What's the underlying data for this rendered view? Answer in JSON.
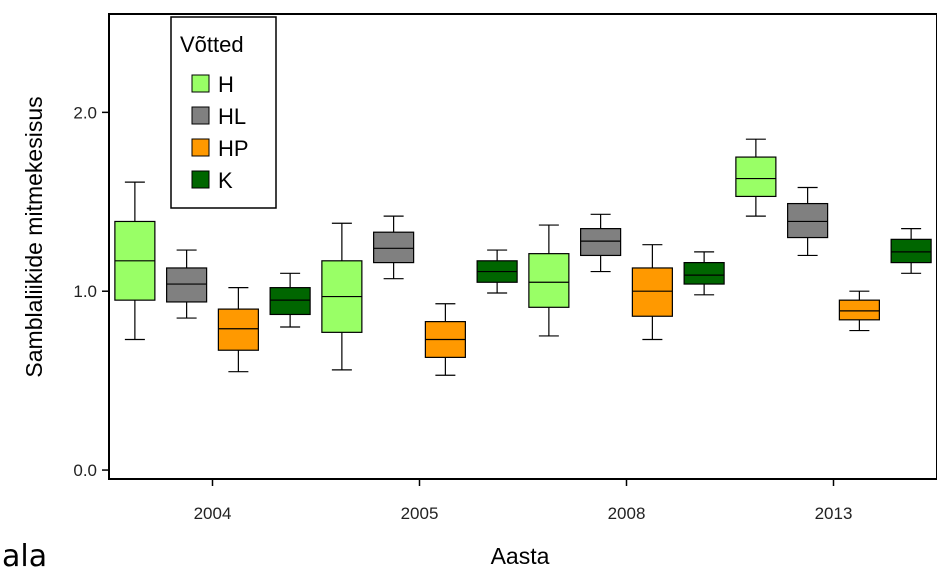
{
  "corner_text": "ala",
  "chart_data": {
    "type": "box",
    "xlabel": "Aasta",
    "ylabel": "Samblaliikide mitmekesisus",
    "ylim": [
      -0.05,
      2.55
    ],
    "yticks": [
      0.0,
      1.0,
      2.0
    ],
    "ytick_labels": [
      "0.0",
      "1.0",
      "2.0"
    ],
    "categories": [
      "2004",
      "2005",
      "2008",
      "2013"
    ],
    "legend": {
      "title": "Võtted",
      "position": "top-left",
      "entries": [
        "H",
        "HL",
        "HP",
        "K"
      ]
    },
    "series": [
      {
        "name": "H",
        "color": "#99ff66",
        "boxes": [
          {
            "min": 0.73,
            "q1": 0.95,
            "median": 1.17,
            "q3": 1.39,
            "max": 1.61
          },
          {
            "min": 0.56,
            "q1": 0.77,
            "median": 0.97,
            "q3": 1.17,
            "max": 1.38
          },
          {
            "min": 0.75,
            "q1": 0.91,
            "median": 1.05,
            "q3": 1.21,
            "max": 1.37
          },
          {
            "min": 1.42,
            "q1": 1.53,
            "median": 1.63,
            "q3": 1.75,
            "max": 1.85
          }
        ]
      },
      {
        "name": "HL",
        "color": "#808080",
        "boxes": [
          {
            "min": 0.85,
            "q1": 0.94,
            "median": 1.04,
            "q3": 1.13,
            "max": 1.23
          },
          {
            "min": 1.07,
            "q1": 1.16,
            "median": 1.24,
            "q3": 1.33,
            "max": 1.42
          },
          {
            "min": 1.11,
            "q1": 1.2,
            "median": 1.28,
            "q3": 1.35,
            "max": 1.43
          },
          {
            "min": 1.2,
            "q1": 1.3,
            "median": 1.39,
            "q3": 1.49,
            "max": 1.58
          }
        ]
      },
      {
        "name": "HP",
        "color": "#ff9900",
        "boxes": [
          {
            "min": 0.55,
            "q1": 0.67,
            "median": 0.79,
            "q3": 0.9,
            "max": 1.02
          },
          {
            "min": 0.53,
            "q1": 0.63,
            "median": 0.73,
            "q3": 0.83,
            "max": 0.93
          },
          {
            "min": 0.73,
            "q1": 0.86,
            "median": 1.0,
            "q3": 1.13,
            "max": 1.26
          },
          {
            "min": 0.78,
            "q1": 0.84,
            "median": 0.89,
            "q3": 0.95,
            "max": 1.0
          }
        ]
      },
      {
        "name": "K",
        "color": "#006600",
        "boxes": [
          {
            "min": 0.8,
            "q1": 0.87,
            "median": 0.95,
            "q3": 1.02,
            "max": 1.1
          },
          {
            "min": 0.99,
            "q1": 1.05,
            "median": 1.11,
            "q3": 1.17,
            "max": 1.23
          },
          {
            "min": 0.98,
            "q1": 1.04,
            "median": 1.09,
            "q3": 1.16,
            "max": 1.22
          },
          {
            "min": 1.1,
            "q1": 1.16,
            "median": 1.22,
            "q3": 1.29,
            "max": 1.35
          }
        ]
      }
    ]
  }
}
